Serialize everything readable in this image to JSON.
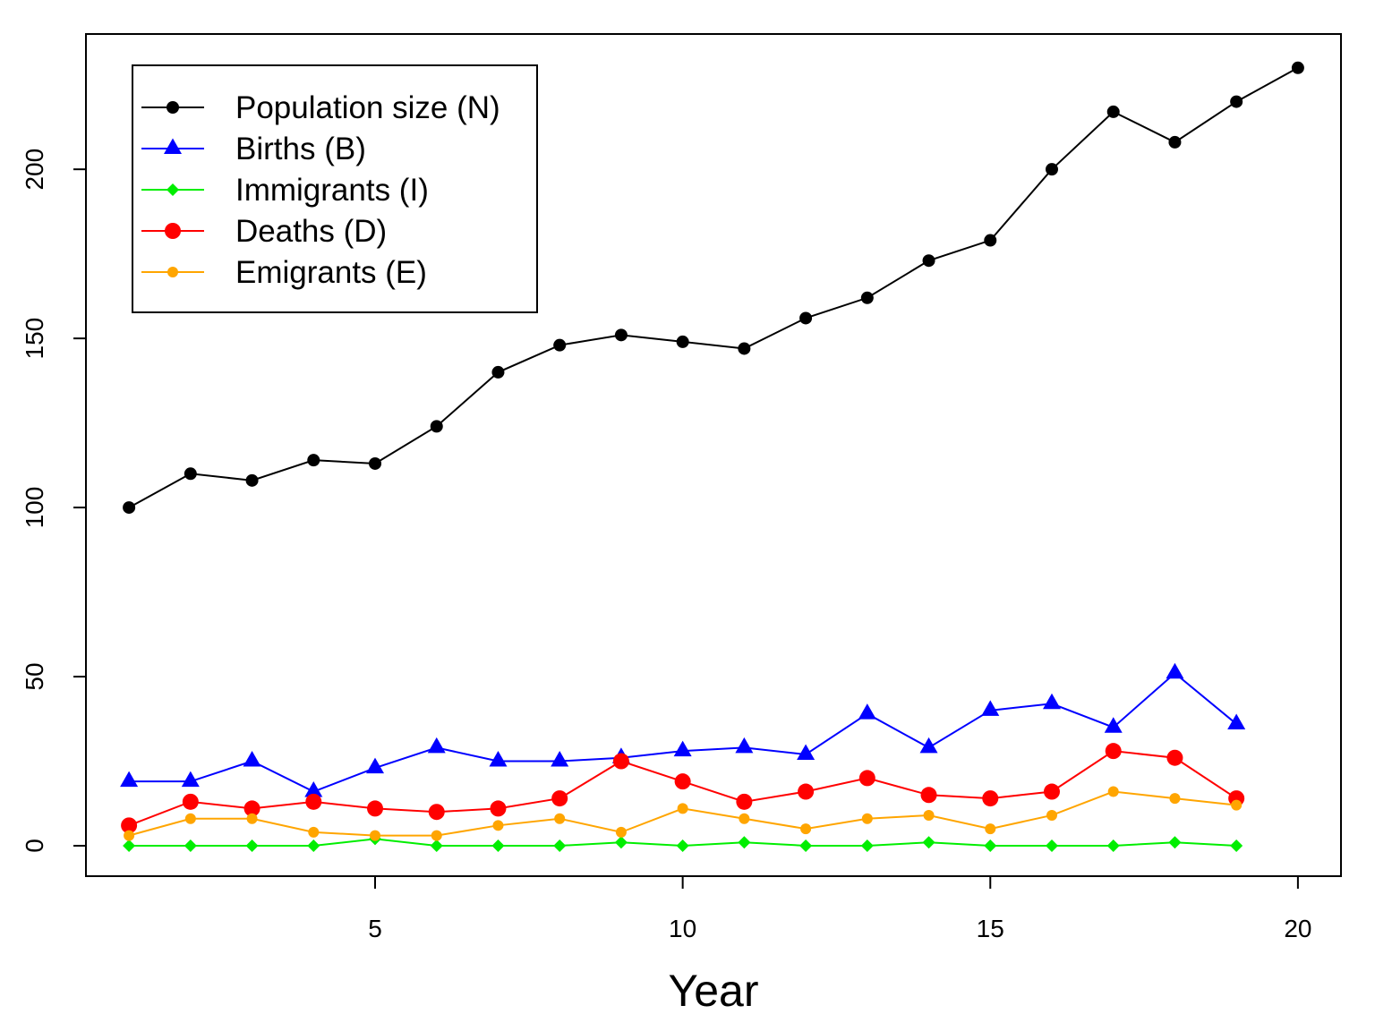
{
  "chart_data": {
    "type": "line",
    "xlabel": "Year",
    "ylabel": "",
    "title": "",
    "xlim": [
      0.3,
      20.7
    ],
    "ylim": [
      -9,
      240
    ],
    "xticks": [
      "5",
      "10",
      "15",
      "20"
    ],
    "yticks": [
      "0",
      "50",
      "100",
      "150",
      "200"
    ],
    "grid": false,
    "legend_position": "top-left",
    "series": [
      {
        "name": "Population size (N)",
        "color": "#000000",
        "marker": "circle",
        "x": [
          1,
          2,
          3,
          4,
          5,
          6,
          7,
          8,
          9,
          10,
          11,
          12,
          13,
          14,
          15,
          16,
          17,
          18,
          19,
          20
        ],
        "values": [
          100,
          110,
          108,
          114,
          113,
          124,
          140,
          148,
          151,
          149,
          147,
          156,
          162,
          173,
          179,
          200,
          217,
          208,
          220,
          230
        ]
      },
      {
        "name": "Births (B)",
        "color": "#0000ff",
        "marker": "triangle",
        "x": [
          1,
          2,
          3,
          4,
          5,
          6,
          7,
          8,
          9,
          10,
          11,
          12,
          13,
          14,
          15,
          16,
          17,
          18,
          19
        ],
        "values": [
          19,
          19,
          25,
          16,
          23,
          29,
          25,
          25,
          26,
          28,
          29,
          27,
          39,
          29,
          40,
          42,
          35,
          51,
          36
        ]
      },
      {
        "name": "Immigrants (I)",
        "color": "#00ee00",
        "marker": "diamond",
        "x": [
          1,
          2,
          3,
          4,
          5,
          6,
          7,
          8,
          9,
          10,
          11,
          12,
          13,
          14,
          15,
          16,
          17,
          18,
          19
        ],
        "values": [
          0,
          0,
          0,
          0,
          2,
          0,
          0,
          0,
          1,
          0,
          1,
          0,
          0,
          1,
          0,
          0,
          0,
          1,
          0
        ]
      },
      {
        "name": "Deaths (D)",
        "color": "#ff0000",
        "marker": "circle-large",
        "x": [
          1,
          2,
          3,
          4,
          5,
          6,
          7,
          8,
          9,
          10,
          11,
          12,
          13,
          14,
          15,
          16,
          17,
          18,
          19
        ],
        "values": [
          6,
          13,
          11,
          13,
          11,
          10,
          11,
          14,
          25,
          19,
          13,
          16,
          20,
          15,
          14,
          16,
          28,
          26,
          14
        ]
      },
      {
        "name": "Emigrants (E)",
        "color": "#ffa500",
        "marker": "circle-small",
        "x": [
          1,
          2,
          3,
          4,
          5,
          6,
          7,
          8,
          9,
          10,
          11,
          12,
          13,
          14,
          15,
          16,
          17,
          18,
          19
        ],
        "values": [
          3,
          8,
          8,
          4,
          3,
          3,
          6,
          8,
          4,
          11,
          8,
          5,
          8,
          9,
          5,
          9,
          16,
          14,
          12
        ]
      }
    ]
  }
}
